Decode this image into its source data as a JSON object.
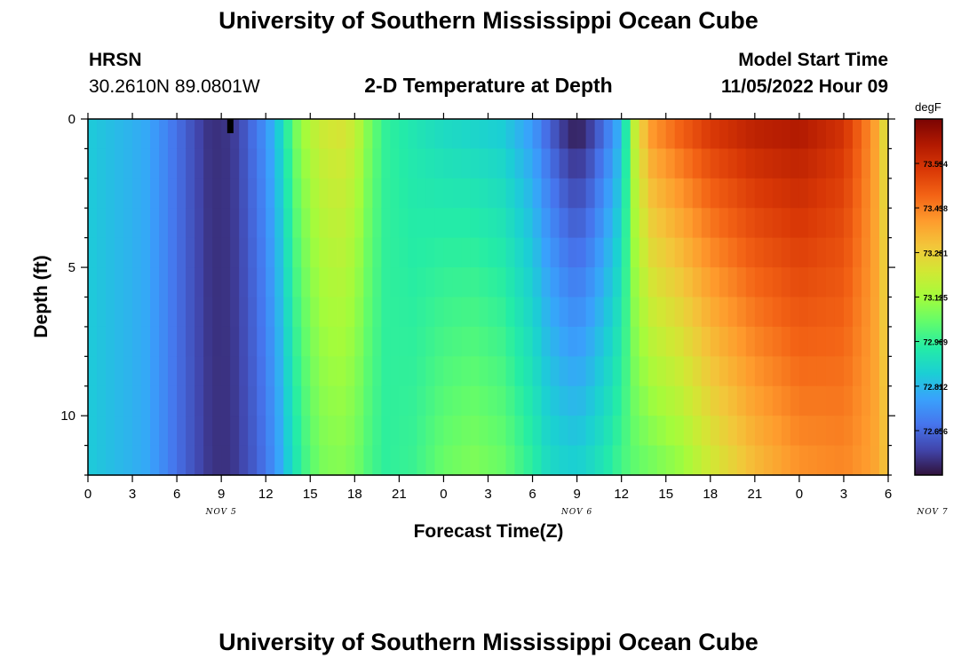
{
  "header": {
    "title": "University of Southern Mississippi Ocean Cube",
    "station": "HRSN",
    "coords": "30.2610N  89.0801W",
    "subtitle": "2-D Temperature at Depth",
    "start_label": "Model Start Time",
    "start_time": "11/05/2022 Hour 09"
  },
  "footer": {
    "title": "University of Southern Mississippi Ocean Cube"
  },
  "colors": [
    "#30123b",
    "#4145ab",
    "#4675ed",
    "#39a2fc",
    "#1bcfd4",
    "#24eca6",
    "#61fc6c",
    "#a4fc3b",
    "#d1e834",
    "#f3c63a",
    "#fe9b2d",
    "#f36315",
    "#d93806",
    "#b11901",
    "#7a0403"
  ],
  "chart_data": {
    "type": "heatmap",
    "xlabel": "Forecast Time(Z)",
    "ylabel": "Depth (ft)",
    "x_tick_labels": [
      "0",
      "3",
      "6",
      "9",
      "12",
      "15",
      "18",
      "21",
      "0",
      "3",
      "6",
      "9",
      "12",
      "15",
      "18",
      "21",
      "0",
      "3",
      "6"
    ],
    "date_labels": [
      {
        "label": "NOV 5",
        "hour": 9
      },
      {
        "label": "NOV 6",
        "hour": 33
      },
      {
        "label": "NOV 7",
        "hour": 57
      }
    ],
    "y_ticks": [
      0,
      5,
      10
    ],
    "ylim": [
      0,
      12
    ],
    "xlim": [
      0,
      54
    ],
    "colorbar": {
      "unit": "degF",
      "ticks": [
        "73.594",
        "73.438",
        "73.281",
        "73.125",
        "72.969",
        "72.812",
        "72.656"
      ],
      "range": [
        72.5,
        73.75
      ]
    },
    "profiles": {
      "hours": [
        0,
        4,
        6,
        8,
        9,
        10,
        11,
        12,
        13,
        14,
        15,
        16,
        17,
        18,
        19,
        20,
        22,
        24,
        26,
        28,
        30,
        31,
        32,
        33,
        34,
        35,
        36,
        37,
        38,
        40,
        42,
        45,
        48,
        51,
        53,
        54
      ],
      "surface": [
        72.85,
        72.78,
        72.67,
        72.56,
        72.55,
        72.58,
        72.66,
        72.74,
        72.88,
        73.07,
        73.17,
        73.22,
        73.24,
        73.2,
        73.07,
        72.97,
        72.92,
        72.88,
        72.86,
        72.84,
        72.74,
        72.64,
        72.55,
        72.49,
        72.56,
        72.67,
        72.8,
        73.24,
        73.42,
        73.52,
        73.6,
        73.66,
        73.68,
        73.6,
        73.4,
        73.2
      ],
      "bottom": [
        72.85,
        72.78,
        72.67,
        72.57,
        72.55,
        72.57,
        72.62,
        72.68,
        72.78,
        72.92,
        73.02,
        73.07,
        73.08,
        73.06,
        73.0,
        72.96,
        72.98,
        73.05,
        73.08,
        73.05,
        72.96,
        72.9,
        72.88,
        72.87,
        72.9,
        72.94,
        73.0,
        73.03,
        73.05,
        73.1,
        73.2,
        73.32,
        73.4,
        73.42,
        73.38,
        73.3
      ]
    }
  }
}
